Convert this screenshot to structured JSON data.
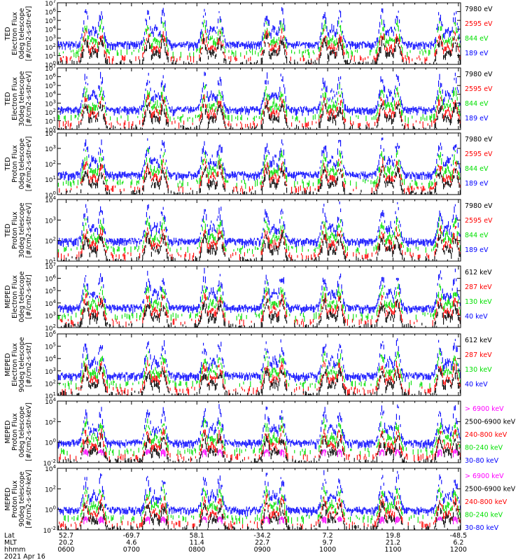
{
  "colors": {
    "blue": "#0000ff",
    "red": "#ff0000",
    "green": "#00e000",
    "black": "#000000",
    "magenta": "#ff00ff"
  },
  "chart_data": {
    "type": "line",
    "title": "",
    "x_label_rows": [
      {
        "name": "Lat",
        "values": [
          "52.7",
          "-69.7",
          "58.1",
          "-34.2",
          "7.2",
          "19.8",
          "-48.5"
        ]
      },
      {
        "name": "MLT",
        "values": [
          "20.2",
          "4.6",
          "11.4",
          "22.7",
          "9.7",
          "21.2",
          "6.2"
        ]
      },
      {
        "name": "hhmm",
        "values": [
          "0600",
          "0700",
          "0800",
          "0900",
          "1000",
          "1100",
          "1200"
        ]
      }
    ],
    "date": "2021 Apr 16",
    "pass_centers_hhmm": [
      "0625",
      "0722",
      "0814",
      "0911",
      "1004",
      "1057",
      "1150"
    ],
    "panels": [
      {
        "ylabel": [
          "TED",
          "Electron Flux",
          "0deg telescope",
          "[#/cm2-s-str-eV]"
        ],
        "y_ticks": [
          "10^0",
          "10^1",
          "10^2",
          "10^3",
          "10^4",
          "10^5",
          "10^6",
          "10^7"
        ],
        "series": [
          {
            "name": "7980 eV",
            "color": "black"
          },
          {
            "name": "2595 eV",
            "color": "red"
          },
          {
            "name": "844 eV",
            "color": "green"
          },
          {
            "name": "189 eV",
            "color": "blue"
          }
        ]
      },
      {
        "ylabel": [
          "TED",
          "Electron Flux",
          "30deg telescope",
          "[#/cm2-s-str-eV]"
        ],
        "y_ticks": [
          "10^0",
          "10^1",
          "10^2",
          "10^3",
          "10^4",
          "10^5",
          "10^6",
          "10^7"
        ],
        "series": [
          {
            "name": "7980 eV",
            "color": "black"
          },
          {
            "name": "2595 eV",
            "color": "red"
          },
          {
            "name": "844 eV",
            "color": "green"
          },
          {
            "name": "189 eV",
            "color": "blue"
          }
        ]
      },
      {
        "ylabel": [
          "TED",
          "Proton Flux",
          "0deg telescope",
          "[#/cm2-s-str-eV]"
        ],
        "y_ticks": [
          "10^0",
          "10^1",
          "10^2",
          "10^3",
          "10^4"
        ],
        "series": [
          {
            "name": "7980 eV",
            "color": "black"
          },
          {
            "name": "2595 eV",
            "color": "red"
          },
          {
            "name": "844 eV",
            "color": "green"
          },
          {
            "name": "189 eV",
            "color": "blue"
          }
        ]
      },
      {
        "ylabel": [
          "TED",
          "Proton Flux",
          "30deg telescope",
          "[#/cm2-s-str-eV]"
        ],
        "y_ticks": [
          "10^1",
          "10^2",
          "10^3",
          "10^4"
        ],
        "series": [
          {
            "name": "7980 eV",
            "color": "black"
          },
          {
            "name": "2595 eV",
            "color": "red"
          },
          {
            "name": "844 eV",
            "color": "green"
          },
          {
            "name": "189 eV",
            "color": "blue"
          }
        ]
      },
      {
        "ylabel": [
          "MEPED",
          "Electron Flux",
          "0deg telescope",
          "[#/cm2-s-str]"
        ],
        "y_ticks": [
          "10^2",
          "10^3",
          "10^4",
          "10^5",
          "10^6",
          "10^7"
        ],
        "series": [
          {
            "name": "612 keV",
            "color": "black"
          },
          {
            "name": "287 keV",
            "color": "red"
          },
          {
            "name": "130 keV",
            "color": "green"
          },
          {
            "name": "40 keV",
            "color": "blue"
          }
        ]
      },
      {
        "ylabel": [
          "MEPED",
          "Electron Flux",
          "90deg telescope",
          "[#/cm2-s-str]"
        ],
        "y_ticks": [
          "10^1",
          "10^2",
          "10^3",
          "10^4",
          "10^5",
          "10^6"
        ],
        "series": [
          {
            "name": "612 keV",
            "color": "black"
          },
          {
            "name": "287 keV",
            "color": "red"
          },
          {
            "name": "130 keV",
            "color": "green"
          },
          {
            "name": "40 keV",
            "color": "blue"
          }
        ]
      },
      {
        "ylabel": [
          "MEPED",
          "Proton Flux",
          "0deg telescope",
          "[#/cm2-s-str-keV]"
        ],
        "y_ticks": [
          "10^-2",
          "10^0",
          "10^2",
          "10^4"
        ],
        "series": [
          {
            "name": "> 6900 keV",
            "color": "magenta"
          },
          {
            "name": "2500-6900 keV",
            "color": "black"
          },
          {
            "name": "240-800 keV",
            "color": "red"
          },
          {
            "name": "80-240 keV",
            "color": "green"
          },
          {
            "name": "30-80 keV",
            "color": "blue"
          }
        ]
      },
      {
        "ylabel": [
          "MEPED",
          "Proton Flux",
          "90deg telescope",
          "[#/cm2-s-str-keV]"
        ],
        "y_ticks": [
          "10^-2",
          "10^0",
          "10^2",
          "10^4"
        ],
        "series": [
          {
            "name": "> 6900 keV",
            "color": "magenta"
          },
          {
            "name": "2500-6900 keV",
            "color": "black"
          },
          {
            "name": "240-800 keV",
            "color": "red"
          },
          {
            "name": "80-240 keV",
            "color": "green"
          },
          {
            "name": "30-80 keV",
            "color": "blue"
          }
        ]
      }
    ]
  }
}
